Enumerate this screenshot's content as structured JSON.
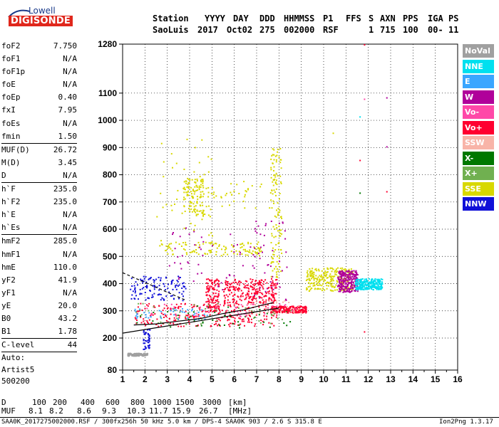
{
  "logo": {
    "line1": "Lowell",
    "line2": "DIGISONDE"
  },
  "header": {
    "row1": [
      "Station",
      "YYYY",
      "DAY",
      "DDD",
      "HHMMSS",
      "P1",
      "FFS",
      "S",
      "AXN",
      "PPS",
      "IGA",
      "PS"
    ],
    "row2": [
      "SaoLuis",
      "2017",
      "Oct02",
      "275",
      "002000",
      "RSF",
      "1",
      "715",
      "100",
      "00-",
      "11"
    ]
  },
  "params": {
    "group1": [
      {
        "label": "foF2",
        "value": "7.750"
      },
      {
        "label": "foF1",
        "value": "N/A"
      },
      {
        "label": "foF1p",
        "value": "N/A"
      },
      {
        "label": "foE",
        "value": "N/A"
      },
      {
        "label": "foEp",
        "value": "0.40"
      },
      {
        "label": "fxI",
        "value": "7.95"
      },
      {
        "label": "foEs",
        "value": "N/A"
      },
      {
        "label": "fmin",
        "value": "1.50"
      }
    ],
    "group2": [
      {
        "label": "MUF(D)",
        "value": "26.72"
      },
      {
        "label": "M(D)",
        "value": "3.45"
      },
      {
        "label": "D",
        "value": "N/A"
      }
    ],
    "group3": [
      {
        "label": "h`F",
        "value": "235.0"
      },
      {
        "label": "h`F2",
        "value": "235.0"
      },
      {
        "label": "h`E",
        "value": "N/A"
      },
      {
        "label": "h`Es",
        "value": "N/A"
      }
    ],
    "group4": [
      {
        "label": "hmF2",
        "value": "285.0"
      },
      {
        "label": "hmF1",
        "value": "N/A"
      },
      {
        "label": "hmE",
        "value": "110.0"
      },
      {
        "label": "yF2",
        "value": "41.9"
      },
      {
        "label": "yF1",
        "value": "N/A"
      },
      {
        "label": "yE",
        "value": "20.0"
      },
      {
        "label": "B0",
        "value": "43.2"
      },
      {
        "label": "B1",
        "value": "1.78"
      }
    ],
    "clevel": {
      "label": "C-level",
      "value": "44"
    },
    "auto": [
      "Auto:",
      "Artist5",
      "500200"
    ]
  },
  "legend": [
    {
      "label": "NoVal",
      "color": "#a0a0a0"
    },
    {
      "label": "NNE",
      "color": "#00e0ef"
    },
    {
      "label": "E",
      "color": "#3aa6ff"
    },
    {
      "label": "W",
      "color": "#b0009a"
    },
    {
      "label": "Vo-",
      "color": "#ff48a8"
    },
    {
      "label": "Vo+",
      "color": "#ff0030"
    },
    {
      "label": "SSW",
      "color": "#f8b4a8"
    },
    {
      "label": "X-",
      "color": "#007800"
    },
    {
      "label": "X+",
      "color": "#70b050"
    },
    {
      "label": "SSE",
      "color": "#d8d800"
    },
    {
      "label": "NNW",
      "color": "#1010d8"
    }
  ],
  "muf_table": {
    "d_label": "D",
    "muf_label": "MUF",
    "d_values": [
      "100",
      "200",
      "400",
      "600",
      "800",
      "1000",
      "1500",
      "3000"
    ],
    "d_unit": "[km]",
    "muf_values": [
      "8.1",
      "8.2",
      "8.6",
      "9.3",
      "10.3",
      "11.7",
      "15.9",
      "26.7"
    ],
    "muf_unit": "[MHz]"
  },
  "footer": {
    "left": "SAA0K_2017275002000.RSF / 300fx256h 50 kHz 5.0 km / DPS-4 SAA0K 903 / 2.6 S 315.8 E",
    "right": "Ion2Png 1.3.17"
  },
  "chart_data": {
    "type": "scatter",
    "x_ticks": [
      1,
      2,
      3,
      4,
      5,
      6,
      7,
      8,
      9,
      10,
      11,
      12,
      13,
      14,
      15,
      16
    ],
    "xlim": [
      1,
      16
    ],
    "y_ticks": [
      80,
      200,
      300,
      400,
      500,
      600,
      700,
      800,
      900,
      1000,
      1100,
      1280
    ],
    "ylim": [
      80,
      1280
    ],
    "grid": true,
    "clusters": [
      {
        "cat": "Vo+",
        "x": [
          1.5,
          7.9
        ],
        "y": [
          245,
          330
        ],
        "density": "high"
      },
      {
        "cat": "Vo+",
        "x": [
          5.5,
          7.9
        ],
        "y": [
          330,
          420
        ],
        "density": "high"
      },
      {
        "cat": "Vo+",
        "x": [
          7.6,
          9.2
        ],
        "y": [
          295,
          320
        ],
        "density": "high"
      },
      {
        "cat": "Vo+",
        "x": [
          4.7,
          5.3
        ],
        "y": [
          300,
          420
        ],
        "density": "medium"
      },
      {
        "cat": "SSE",
        "x": [
          9.2,
          11.3
        ],
        "y": [
          375,
          460
        ],
        "density": "high"
      },
      {
        "cat": "SSE",
        "x": [
          2.6,
          7.2
        ],
        "y": [
          505,
          555
        ],
        "density": "medium"
      },
      {
        "cat": "SSE",
        "x": [
          3.7,
          4.6
        ],
        "y": [
          650,
          790
        ],
        "density": "medium"
      },
      {
        "cat": "SSE",
        "x": [
          4.5,
          7.8
        ],
        "y": [
          680,
          780
        ],
        "density": "low"
      },
      {
        "cat": "SSE",
        "x": [
          7.6,
          8.1
        ],
        "y": [
          420,
          900
        ],
        "density": "medium"
      },
      {
        "cat": "W",
        "x": [
          10.6,
          11.5
        ],
        "y": [
          370,
          450
        ],
        "density": "high"
      },
      {
        "cat": "W",
        "x": [
          6.8,
          8.4
        ],
        "y": [
          330,
          640
        ],
        "density": "low"
      },
      {
        "cat": "W",
        "x": [
          3.0,
          7.0
        ],
        "y": [
          380,
          620
        ],
        "density": "low"
      },
      {
        "cat": "NNE",
        "x": [
          11.4,
          12.6
        ],
        "y": [
          380,
          420
        ],
        "density": "high"
      },
      {
        "cat": "NNW",
        "x": [
          1.3,
          3.8
        ],
        "y": [
          340,
          430
        ],
        "density": "medium"
      },
      {
        "cat": "NNW",
        "x": [
          1.9,
          2.2
        ],
        "y": [
          160,
          240
        ],
        "density": "low"
      },
      {
        "cat": "NoVal",
        "x": [
          1.2,
          2.1
        ],
        "y": [
          135,
          145
        ],
        "density": "medium"
      },
      {
        "cat": "X-",
        "x": [
          1.5,
          8.6
        ],
        "y": [
          240,
          320
        ],
        "density": "low"
      },
      {
        "cat": "X+",
        "x": [
          1.5,
          8.6
        ],
        "y": [
          250,
          330
        ],
        "density": "low"
      },
      {
        "cat": "E",
        "x": [
          1.5,
          5.0
        ],
        "y": [
          270,
          310
        ],
        "density": "low"
      },
      {
        "cat": "Vo-",
        "x": [
          2.0,
          9.0
        ],
        "y": [
          280,
          330
        ],
        "density": "low"
      },
      {
        "cat": "SSW",
        "x": [
          6.5,
          9.0
        ],
        "y": [
          290,
          340
        ],
        "density": "low"
      },
      {
        "cat": "SSE",
        "x": [
          2.5,
          5.0
        ],
        "y": [
          560,
          940
        ],
        "density": "low"
      }
    ],
    "points": [
      {
        "cat": "Vo+",
        "x": 11.8,
        "y": 1280
      },
      {
        "cat": "W",
        "x": 12.8,
        "y": 1085
      },
      {
        "cat": "Vo-",
        "x": 11.8,
        "y": 1080
      },
      {
        "cat": "NNE",
        "x": 11.6,
        "y": 1015
      },
      {
        "cat": "SSE",
        "x": 10.4,
        "y": 955
      },
      {
        "cat": "W",
        "x": 12.8,
        "y": 905
      },
      {
        "cat": "Vo+",
        "x": 11.6,
        "y": 855
      },
      {
        "cat": "Vo+",
        "x": 12.8,
        "y": 740
      },
      {
        "cat": "X-",
        "x": 11.6,
        "y": 735
      },
      {
        "cat": "Vo+",
        "x": 11.8,
        "y": 225
      }
    ],
    "lines": [
      {
        "name": "",
        "style": "solid",
        "color": "#000000",
        "x": [
          1.0,
          8.0
        ],
        "y": [
          218,
          310
        ]
      },
      {
        "name": "",
        "style": "dashed",
        "color": "#000000",
        "x": [
          1.0,
          3.8
        ],
        "y": [
          440,
          340
        ]
      },
      {
        "name": "",
        "style": "solid",
        "color": "#000000",
        "x": [
          1.5,
          2.5,
          3.5,
          4.5,
          5.5,
          6.5,
          7.2,
          7.75
        ],
        "y": [
          248,
          252,
          262,
          272,
          290,
          305,
          320,
          330
        ]
      }
    ]
  }
}
